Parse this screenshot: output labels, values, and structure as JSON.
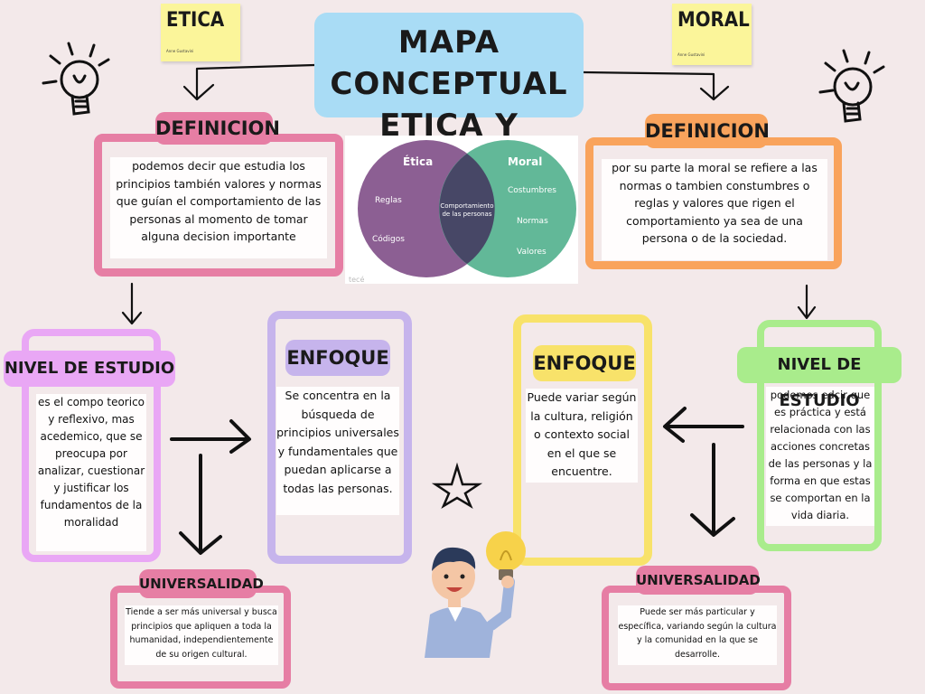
{
  "title": {
    "line1": "MAPA CONCEPTUAL",
    "line2": "ETICA Y MORAL"
  },
  "sticky_left": {
    "title": "ETICA",
    "sign": "Anne Gustavini"
  },
  "sticky_right": {
    "title": "MORAL",
    "sign": "Anne Gustavini"
  },
  "colors": {
    "pink": "#e67ea4",
    "orange": "#f9a35c",
    "lilac": "#d8b8f3",
    "lightpurple": "#c6b4ec",
    "yellow": "#f8e26a",
    "green": "#a9ec8c",
    "blue": "#a9dcf5",
    "purple": "#8c5f93",
    "teal": "#62b898"
  },
  "etica": {
    "definicion_label": "DEFINICION",
    "definicion_text": "podemos decir que estudia los principios también valores y normas que guían el comportamiento de las personas al momento de tomar alguna decision importante",
    "nivel_label": "NIVEL DE ESTUDIO",
    "nivel_text": "es el compo teorico y reflexivo, mas acedemico, que se preocupa por analizar, cuestionar y justificar los fundamentos de la moralidad",
    "enfoque_label": "ENFOQUE",
    "enfoque_text": "Se concentra en la búsqueda de principios universales y fundamentales que puedan aplicarse a todas las personas.",
    "universalidad_label": "UNIVERSALIDAD",
    "universalidad_text": "Tiende a ser más universal y busca principios que apliquen a toda la humanidad, independientemente de su origen cultural."
  },
  "moral": {
    "definicion_label": "DEFINICION",
    "definicion_text": "por su parte la moral se refiere a las normas o tambien constumbres o reglas y valores que rigen el comportamiento ya sea de una persona o de la sociedad.",
    "nivel_label": "NIVEL DE ESTUDIO",
    "nivel_text": "podemos edcir que es práctica y está relacionada con las acciones concretas de las personas y la forma en que estas se comportan en la vida diaria.",
    "enfoque_label": "ENFOQUE",
    "enfoque_text": "Puede variar según la cultura, religión o contexto social en el que se encuentre.",
    "universalidad_label": "UNIVERSALIDAD",
    "universalidad_text": "Puede ser más particular y específica, variando según la cultura y la comunidad en la que se desarrolle."
  },
  "venn": {
    "left_title": "Ética",
    "right_title": "Moral",
    "left_items": [
      "Reglas",
      "Códigos"
    ],
    "right_items": [
      "Costumbres",
      "Normas",
      "Valores"
    ],
    "center_line1": "Comportamiento",
    "center_line2": "de las personas",
    "watermark": "tecé"
  },
  "icons": [
    "lightbulb-icon",
    "lightbulb-icon",
    "star-icon",
    "person-illustration"
  ]
}
